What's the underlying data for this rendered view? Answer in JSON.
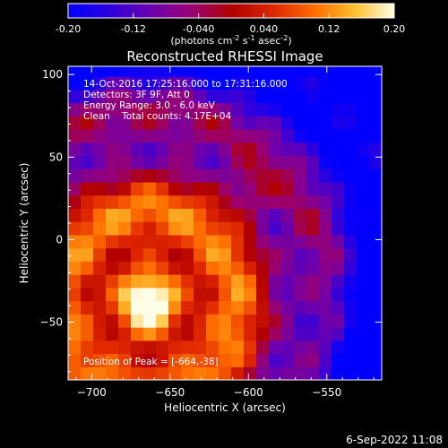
{
  "chart_data": {
    "type": "heatmap",
    "title": "Reconstructed RHESSI Image",
    "xlabel": "Heliocentric X (arcsec)",
    "ylabel": "Heliocentric Y (arcsec)",
    "xlim": [
      -715,
      -515
    ],
    "ylim": [
      -85,
      105
    ],
    "xticks": [
      -700,
      -650,
      -600,
      -550
    ],
    "yticks": [
      100,
      50,
      0,
      -50
    ],
    "colorbar": {
      "range": [
        -0.2,
        0.2
      ],
      "ticks": [
        "-0.20",
        "-0.12",
        "-0.040",
        "0.040",
        "0.12",
        "0.20"
      ],
      "unit_label": "(photons cm",
      "unit_exp1": "-2",
      "unit_mid": " s",
      "unit_exp2": "-1",
      "unit_mid2": " asec",
      "unit_exp3": "-2",
      "unit_end": ")"
    },
    "annotations": [
      "14-Oct-2016 17:25:16.000 to 17:31:16.000",
      "Detectors: 3F 9F, Att 0",
      "Energy Range: 3.0 - 6.0 keV",
      "Clean    Total counts: 4.17E+04"
    ],
    "peak_note": "Position of Peak = [-664,-38]",
    "peak": {
      "x": -664,
      "y": -38
    },
    "secondary_peak": {
      "x": -598,
      "y": 31
    }
  },
  "footer": {
    "date": "6-Sep-2022 11:08"
  }
}
